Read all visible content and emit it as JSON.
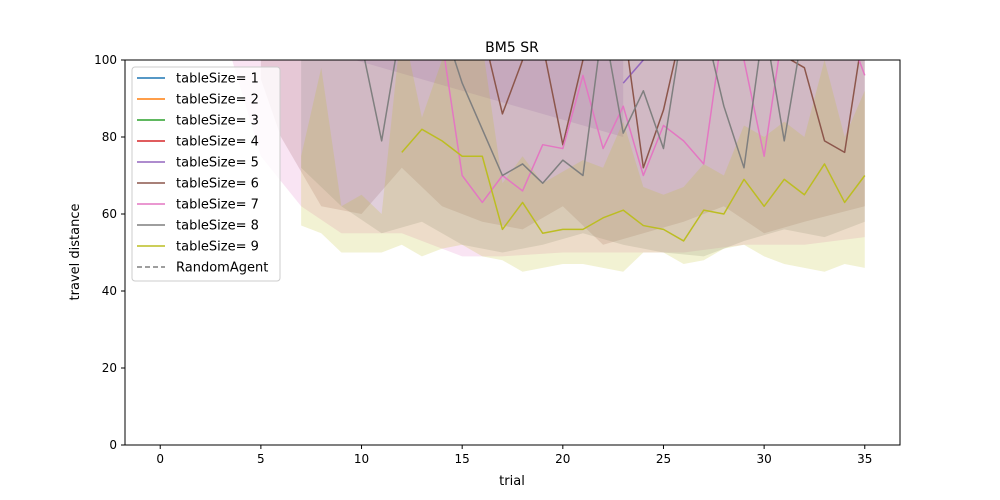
{
  "chart_data": {
    "type": "line",
    "title": "BM5  SR",
    "xlabel": "trial",
    "ylabel": "travel distance",
    "xlim": [
      -1.75,
      36.75
    ],
    "ylim": [
      0,
      100
    ],
    "xticks": [
      0,
      5,
      10,
      15,
      20,
      25,
      30,
      35
    ],
    "yticks": [
      0,
      20,
      40,
      60,
      80,
      100
    ],
    "grid": false,
    "legend_position": "top-left",
    "series": [
      {
        "name": "tableSize= 1",
        "color": "#1f77b4",
        "x": [],
        "y": [],
        "band": []
      },
      {
        "name": "tableSize= 2",
        "color": "#ff7f0e",
        "x": [],
        "y": [],
        "band": []
      },
      {
        "name": "tableSize= 3",
        "color": "#2ca02c",
        "x": [],
        "y": [],
        "band": []
      },
      {
        "name": "tableSize= 4",
        "color": "#d62728",
        "x": [],
        "y": [],
        "band": []
      },
      {
        "name": "tableSize= 5",
        "color": "#9467bd",
        "x": [
          23,
          24
        ],
        "y": [
          94,
          100
        ],
        "band": [
          [
            3,
            110,
            100
          ],
          [
            23,
            80,
            110
          ]
        ]
      },
      {
        "name": "tableSize= 6",
        "color": "#8c564b",
        "x": [
          16,
          17,
          18,
          19,
          20,
          21,
          22,
          23,
          24,
          25,
          26,
          27,
          28,
          29,
          30,
          31,
          32,
          33,
          34,
          35
        ],
        "y": [
          108,
          86,
          100,
          104,
          78,
          100,
          104,
          110,
          72,
          87,
          110,
          110,
          110,
          110,
          110,
          101,
          98,
          79,
          76,
          110
        ],
        "band": [
          [
            5,
            95,
            110
          ],
          [
            6,
            80,
            110
          ],
          [
            8,
            62,
            110
          ],
          [
            10,
            60,
            110
          ],
          [
            12,
            72,
            110
          ],
          [
            14,
            62,
            110
          ],
          [
            16,
            58,
            110
          ],
          [
            18,
            56,
            110
          ],
          [
            20,
            62,
            110
          ],
          [
            22,
            52,
            110
          ],
          [
            24,
            55,
            110
          ],
          [
            26,
            58,
            110
          ],
          [
            28,
            62,
            110
          ],
          [
            30,
            55,
            110
          ],
          [
            32,
            58,
            110
          ],
          [
            35,
            62,
            110
          ]
        ]
      },
      {
        "name": "tableSize= 7",
        "color": "#e377c2",
        "x": [
          14,
          15,
          16,
          17,
          18,
          19,
          20,
          21,
          22,
          23,
          24,
          25,
          26,
          27,
          28,
          29,
          30,
          31,
          32,
          33,
          34,
          35
        ],
        "y": [
          105,
          70,
          63,
          70,
          66,
          78,
          77,
          96,
          77,
          88,
          70,
          83,
          79,
          73,
          110,
          100,
          75,
          110,
          110,
          110,
          110,
          96
        ],
        "band": [
          [
            3,
            110,
            110
          ],
          [
            5,
            75,
            110
          ],
          [
            7,
            62,
            110
          ],
          [
            9,
            55,
            110
          ],
          [
            12,
            55,
            110
          ],
          [
            15,
            49,
            110
          ],
          [
            17,
            49,
            110
          ],
          [
            20,
            50,
            110
          ],
          [
            23,
            50,
            110
          ],
          [
            26,
            50,
            110
          ],
          [
            29,
            52,
            110
          ],
          [
            32,
            52,
            110
          ],
          [
            35,
            54,
            110
          ]
        ]
      },
      {
        "name": "tableSize= 8",
        "color": "#7f7f7f",
        "x": [
          10,
          11,
          12,
          13,
          14,
          15,
          16,
          17,
          18,
          19,
          20,
          21,
          22,
          23,
          24,
          25,
          26,
          27,
          28,
          29,
          30,
          31,
          32,
          33,
          34,
          35
        ],
        "y": [
          104,
          79,
          110,
          110,
          110,
          94,
          82,
          70,
          73,
          68,
          74,
          70,
          110,
          81,
          92,
          77,
          110,
          110,
          88,
          72,
          110,
          79,
          110,
          110,
          110,
          110
        ],
        "band": [
          [
            7,
            72,
            110
          ],
          [
            9,
            62,
            110
          ],
          [
            11,
            55,
            110
          ],
          [
            13,
            58,
            110
          ],
          [
            15,
            52,
            110
          ],
          [
            17,
            50,
            110
          ],
          [
            19,
            52,
            110
          ],
          [
            21,
            55,
            110
          ],
          [
            23,
            52,
            110
          ],
          [
            25,
            50,
            110
          ],
          [
            27,
            49,
            110
          ],
          [
            29,
            53,
            110
          ],
          [
            31,
            56,
            110
          ],
          [
            33,
            54,
            110
          ],
          [
            35,
            58,
            110
          ]
        ]
      },
      {
        "name": "tableSize= 9",
        "color": "#bcbd22",
        "x": [
          12,
          13,
          14,
          15,
          16,
          17,
          18,
          19,
          20,
          21,
          22,
          23,
          24,
          25,
          26,
          27,
          28,
          29,
          30,
          31,
          32,
          33,
          34,
          35
        ],
        "y": [
          76,
          82,
          79,
          75,
          75,
          56,
          63,
          55,
          56,
          56,
          59,
          61,
          57,
          56,
          53,
          61,
          60,
          69,
          62,
          69,
          65,
          73,
          63,
          70
        ],
        "band": [
          [
            7,
            57,
            75
          ],
          [
            8,
            55,
            98
          ],
          [
            9,
            50,
            62
          ],
          [
            10,
            50,
            65
          ],
          [
            11,
            50,
            60
          ],
          [
            12,
            52,
            110
          ],
          [
            13,
            49,
            85
          ],
          [
            14,
            51,
            100
          ],
          [
            15,
            52,
            100
          ],
          [
            16,
            49,
            104
          ],
          [
            17,
            48,
            68
          ],
          [
            18,
            45,
            75
          ],
          [
            19,
            46,
            68
          ],
          [
            20,
            47,
            71
          ],
          [
            21,
            47,
            74
          ],
          [
            22,
            46,
            72
          ],
          [
            23,
            45,
            84
          ],
          [
            24,
            50,
            67
          ],
          [
            25,
            50,
            65
          ],
          [
            26,
            47,
            67
          ],
          [
            27,
            48,
            73
          ],
          [
            28,
            51,
            70
          ],
          [
            29,
            52,
            83
          ],
          [
            30,
            49,
            80
          ],
          [
            31,
            47,
            84
          ],
          [
            32,
            46,
            80
          ],
          [
            33,
            45,
            100
          ],
          [
            34,
            47,
            80
          ],
          [
            35,
            46,
            92
          ]
        ]
      }
    ],
    "reference_line": {
      "name": "RandomAgent",
      "color": "#7f7f7f",
      "style": "dashed",
      "y": null
    }
  }
}
